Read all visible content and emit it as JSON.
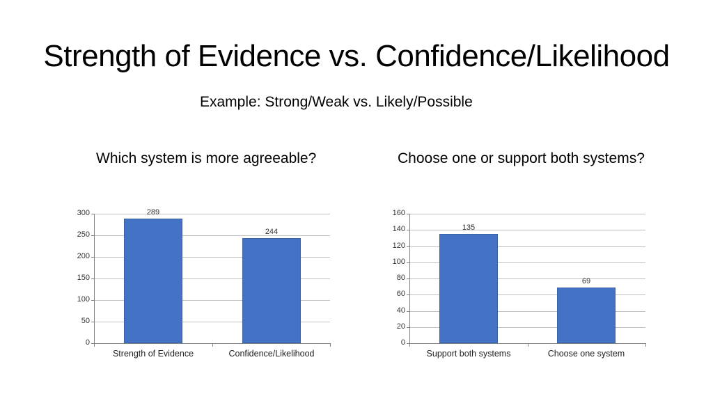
{
  "slide": {
    "title": "Strength of Evidence vs. Confidence/Likelihood",
    "subtitle": "Example: Strong/Weak vs. Likely/Possible",
    "questions": [
      "Which system is more agreeable?",
      "Choose one or support both systems?"
    ]
  },
  "colors": {
    "bar": "#4472c4",
    "grid": "#c0c0c0",
    "axis": "#808080"
  },
  "chart_data": [
    {
      "type": "bar",
      "title": "Which system is more agreeable?",
      "categories": [
        "Strength of Evidence",
        "Confidence/Likelihood"
      ],
      "values": [
        289,
        244
      ],
      "value_labels": [
        "289",
        "244"
      ],
      "yticks": [
        "0",
        "50",
        "100",
        "150",
        "200",
        "250",
        "300"
      ],
      "ylim": [
        0,
        300
      ],
      "xlabel": "",
      "ylabel": "",
      "grid": true,
      "legend": false
    },
    {
      "type": "bar",
      "title": "Choose one or support both systems?",
      "categories": [
        "Support both systems",
        "Choose one system"
      ],
      "values": [
        135,
        69
      ],
      "value_labels": [
        "135",
        "69"
      ],
      "yticks": [
        "0",
        "20",
        "40",
        "60",
        "80",
        "100",
        "120",
        "140",
        "160"
      ],
      "ylim": [
        0,
        160
      ],
      "xlabel": "",
      "ylabel": "",
      "grid": true,
      "legend": false
    }
  ]
}
